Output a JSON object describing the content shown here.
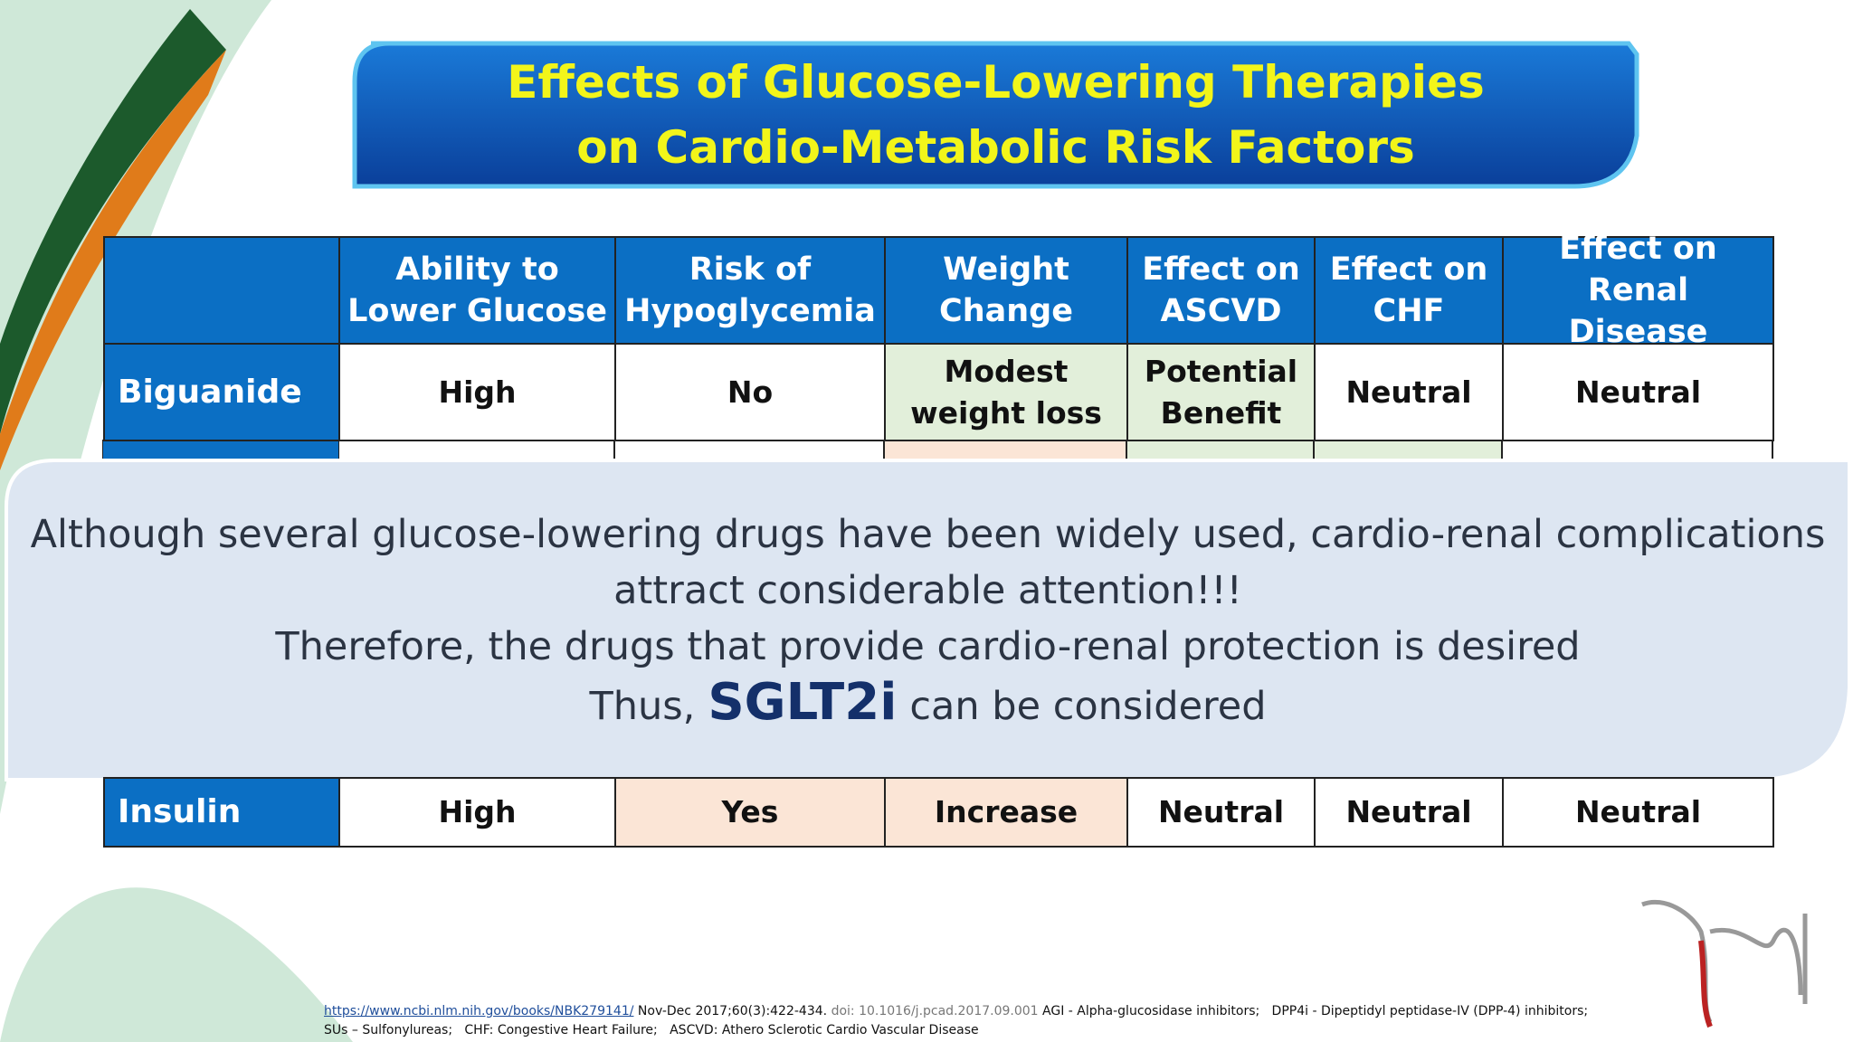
{
  "title": [
    "Effects of Glucose-Lowering Therapies",
    "on Cardio-Metabolic Risk Factors"
  ],
  "table": {
    "header": [
      [
        "Ability to",
        "Lower Glucose"
      ],
      [
        "Risk of",
        "Hypoglycemia"
      ],
      [
        "Weight",
        "Change"
      ],
      [
        "Effect on",
        "ASCVD"
      ],
      [
        "Effect on",
        "CHF"
      ],
      [
        "Effect on Renal",
        "Disease"
      ]
    ],
    "rows": [
      {
        "label": "Biguanide",
        "cells": [
          "High",
          "No",
          [
            "Modest",
            "weight loss"
          ],
          [
            "Potential",
            "Benefit"
          ],
          "Neutral",
          "Neutral"
        ],
        "fills": [
          "#ffffff",
          "#ffffff",
          "#e2efda",
          "#e2efda",
          "#ffffff",
          "#ffffff"
        ]
      },
      {
        "label": "Insulin",
        "cells": [
          "High",
          "Yes",
          "Increase",
          "Neutral",
          "Neutral",
          "Neutral"
        ],
        "fills": [
          "#ffffff",
          "#fbe5d6",
          "#fbe5d6",
          "#ffffff",
          "#ffffff",
          "#ffffff"
        ]
      }
    ]
  },
  "callout": {
    "lines": [
      "Although several glucose-lowering drugs have been widely used, cardio-renal complications",
      "attract considerable attention!!!",
      "Therefore, the drugs that provide cardio-renal protection is desired"
    ],
    "last": [
      "Thus,",
      "SGLT2i",
      "can be considered"
    ]
  },
  "footer": {
    "link": "https://www.ncbi.nlm.nih.gov/books/NBK279141/",
    "citation": "Nov-Dec 2017;60(3):422-434.",
    "doi": "doi: 10.1016/j.pcad.2017.09.001",
    "abbrev1": "AGI - Alpha-glucosidase inhibitors;   DPP4i - Dipeptidyl peptidase-IV (DPP-4) inhibitors;",
    "abbrev2": "SUs – Sulfonylureas;   CHF: Congestive Heart Failure;   ASCVD: Athero Sclerotic Cardio Vascular Disease"
  }
}
